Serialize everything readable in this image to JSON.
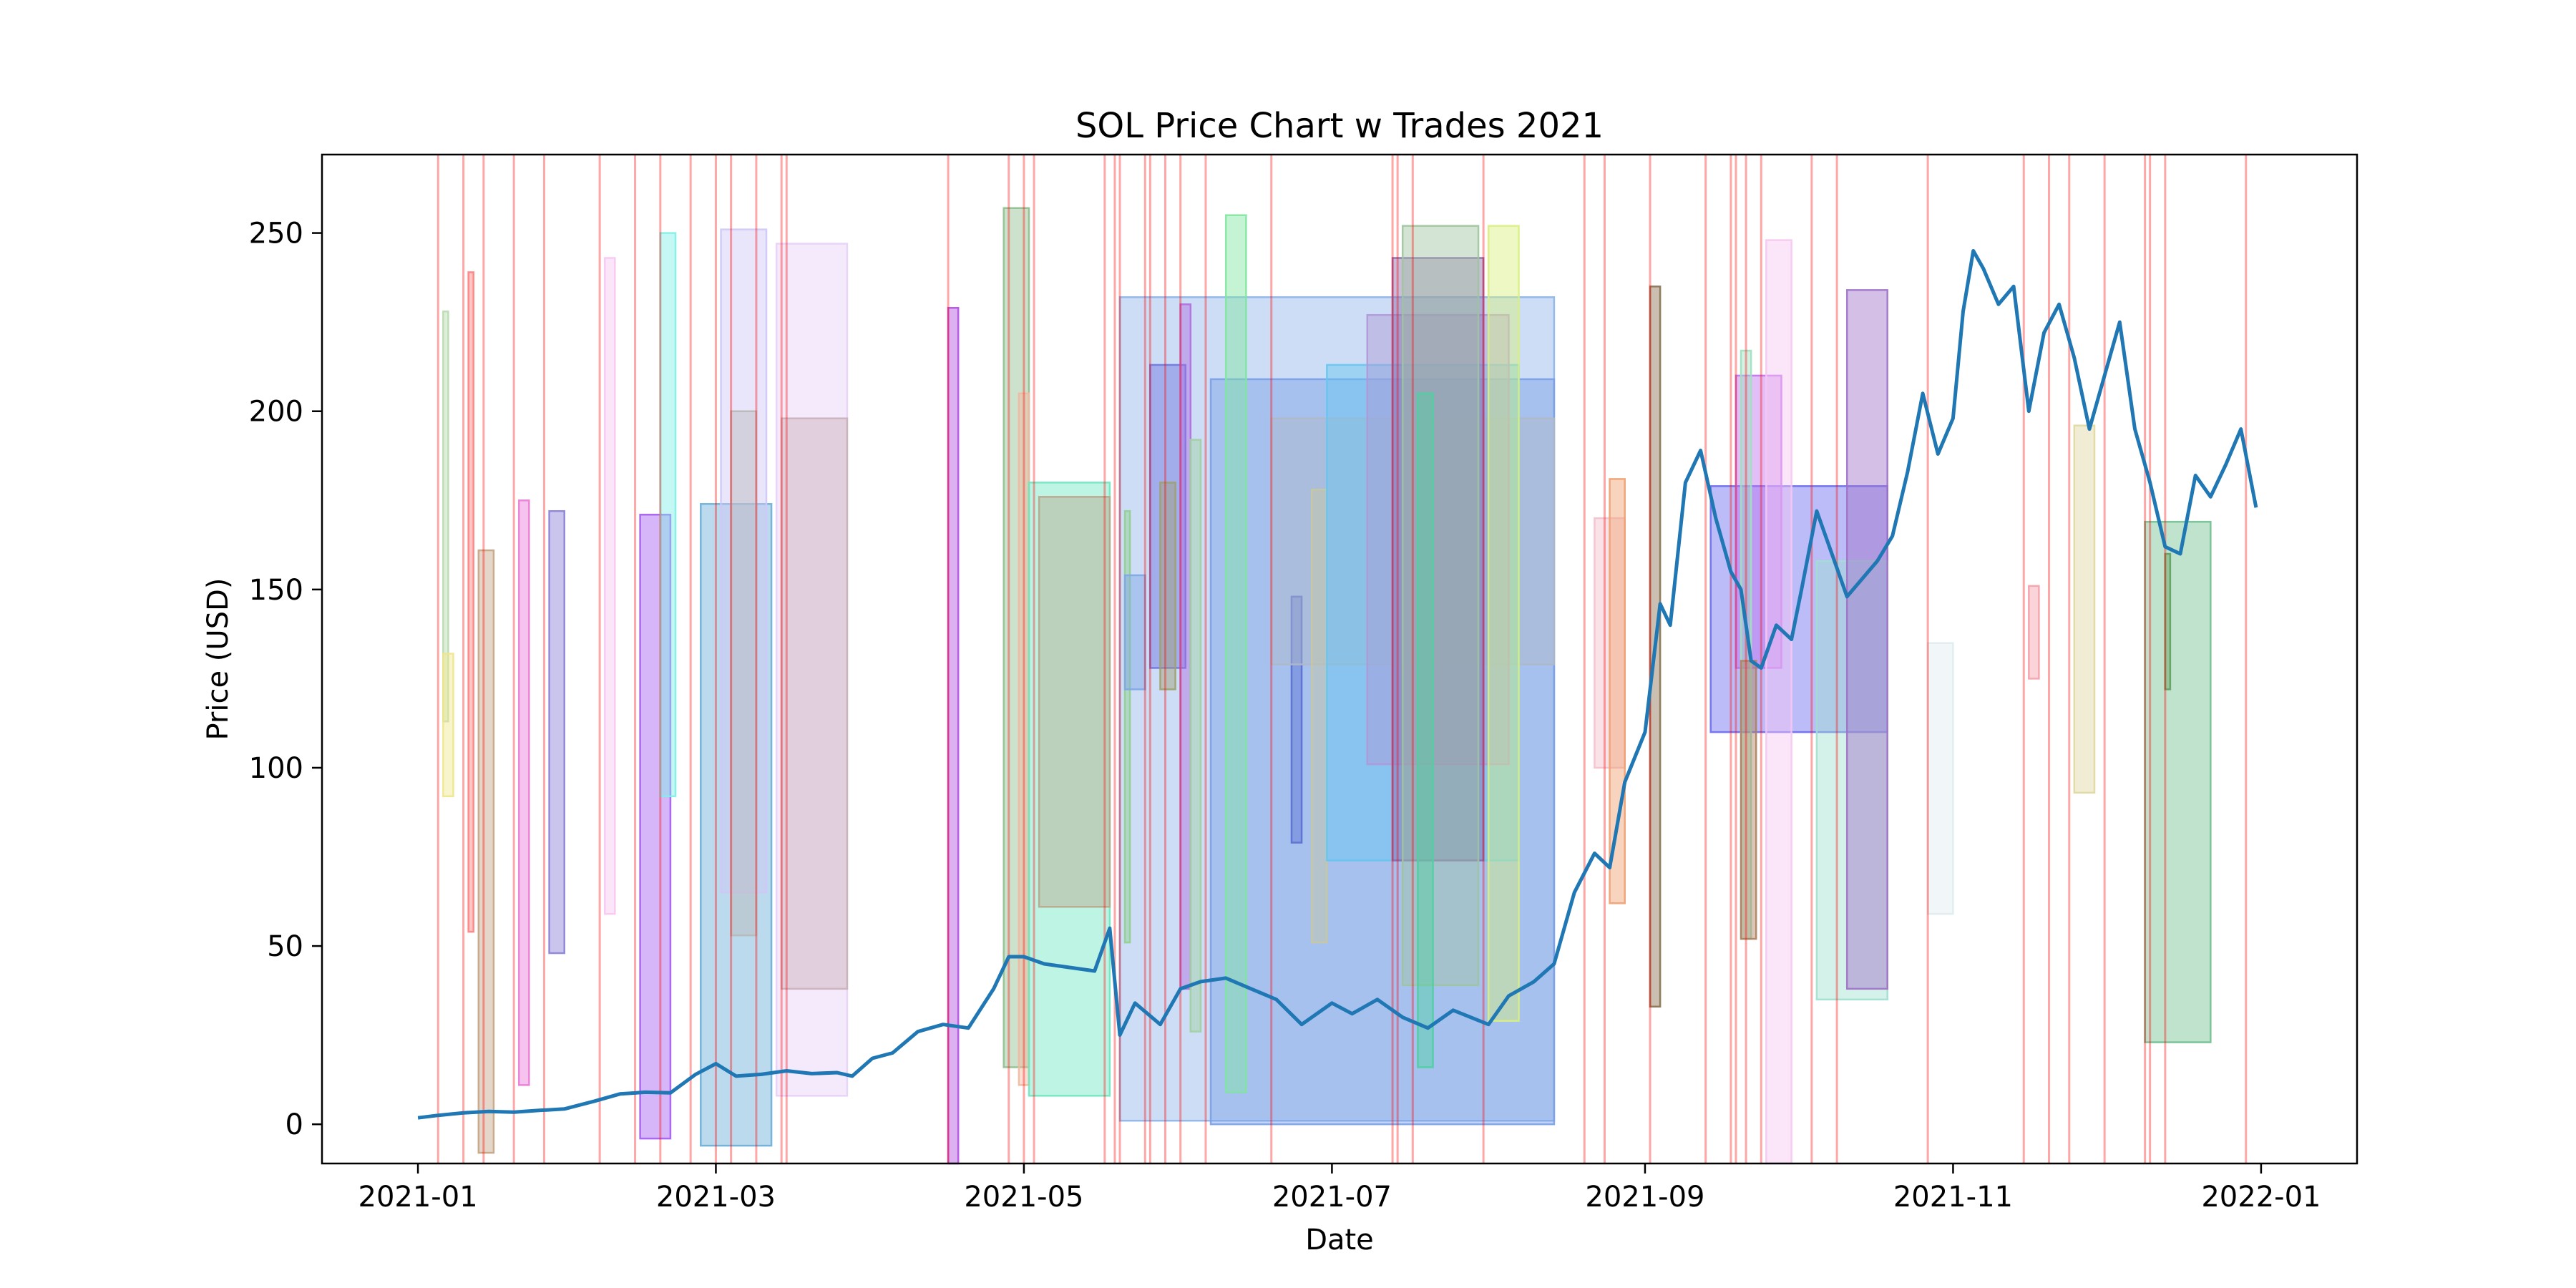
{
  "chart_data": {
    "type": "line",
    "title": "SOL Price Chart w Trades 2021",
    "xlabel": "Date",
    "ylabel": "Price (USD)",
    "xlim": [
      "2020-12-13",
      "2022-01-20"
    ],
    "ylim": [
      -11,
      272
    ],
    "x_ticks": [
      "2021-01",
      "2021-03",
      "2021-05",
      "2021-07",
      "2021-09",
      "2021-11",
      "2022-01"
    ],
    "y_ticks": [
      0,
      50,
      100,
      150,
      200,
      250
    ],
    "grid": false,
    "line_color": "#1f77b4",
    "series": [
      {
        "x": [
          "2021-01-01",
          "2021-01-05",
          "2021-01-10",
          "2021-01-15",
          "2021-01-20",
          "2021-01-25",
          "2021-01-30",
          "2021-02-05",
          "2021-02-10",
          "2021-02-15",
          "2021-02-20",
          "2021-02-25",
          "2021-03-01",
          "2021-03-05",
          "2021-03-10",
          "2021-03-15",
          "2021-03-20",
          "2021-03-25",
          "2021-03-28",
          "2021-04-01",
          "2021-04-05",
          "2021-04-10",
          "2021-04-15",
          "2021-04-20",
          "2021-04-25",
          "2021-04-28",
          "2021-05-01",
          "2021-05-05",
          "2021-05-10",
          "2021-05-15",
          "2021-05-18",
          "2021-05-20",
          "2021-05-23",
          "2021-05-28",
          "2021-06-01",
          "2021-06-05",
          "2021-06-10",
          "2021-06-15",
          "2021-06-20",
          "2021-06-25",
          "2021-07-01",
          "2021-07-05",
          "2021-07-10",
          "2021-07-15",
          "2021-07-20",
          "2021-07-25",
          "2021-08-01",
          "2021-08-05",
          "2021-08-10",
          "2021-08-14",
          "2021-08-18",
          "2021-08-22",
          "2021-08-25",
          "2021-08-28",
          "2021-09-01",
          "2021-09-04",
          "2021-09-06",
          "2021-09-09",
          "2021-09-12",
          "2021-09-15",
          "2021-09-18",
          "2021-09-20",
          "2021-09-22",
          "2021-09-24",
          "2021-09-27",
          "2021-09-30",
          "2021-10-02",
          "2021-10-05",
          "2021-10-08",
          "2021-10-11",
          "2021-10-14",
          "2021-10-17",
          "2021-10-20",
          "2021-10-23",
          "2021-10-26",
          "2021-10-29",
          "2021-11-01",
          "2021-11-03",
          "2021-11-05",
          "2021-11-07",
          "2021-11-10",
          "2021-11-13",
          "2021-11-16",
          "2021-11-19",
          "2021-11-22",
          "2021-11-25",
          "2021-11-28",
          "2021-12-01",
          "2021-12-04",
          "2021-12-07",
          "2021-12-10",
          "2021-12-13",
          "2021-12-16",
          "2021-12-19",
          "2021-12-22",
          "2021-12-25",
          "2021-12-28",
          "2021-12-31"
        ],
        "y": [
          1.8,
          2.5,
          3.2,
          3.6,
          3.4,
          3.9,
          4.3,
          6.5,
          8.5,
          9.0,
          8.8,
          14,
          17,
          13.5,
          14,
          15,
          14.2,
          14.5,
          13.5,
          18.5,
          20,
          26,
          28,
          27,
          38,
          47,
          47,
          45,
          44,
          43,
          55,
          25,
          34,
          28,
          38,
          40,
          41,
          38,
          35,
          28,
          34,
          31,
          35,
          30,
          27,
          32,
          28,
          36,
          40,
          45,
          65,
          76,
          72,
          96,
          110,
          146,
          140,
          180,
          189,
          170,
          155,
          150,
          130,
          128,
          140,
          136,
          150,
          172,
          160,
          148,
          153,
          158,
          165,
          183,
          205,
          188,
          198,
          228,
          245,
          240,
          230,
          235,
          200,
          222,
          230,
          215,
          195,
          210,
          225,
          195,
          180,
          162,
          160,
          182,
          176,
          185,
          195,
          173
        ]
      }
    ],
    "trades": [
      {
        "x0": "2021-01-06",
        "x1": "2021-01-07",
        "y0": 113,
        "y1": 228,
        "color": "#b8dbb0"
      },
      {
        "x0": "2021-01-06",
        "x1": "2021-01-08",
        "y0": 92,
        "y1": 132,
        "color": "#f0e68c"
      },
      {
        "x0": "2021-01-11",
        "x1": "2021-01-12",
        "y0": 54,
        "y1": 239,
        "color": "#ff7f7f"
      },
      {
        "x0": "2021-01-13",
        "x1": "2021-01-16",
        "y0": -8,
        "y1": 161,
        "color": "#c4a484"
      },
      {
        "x0": "2021-01-21",
        "x1": "2021-01-23",
        "y0": 11,
        "y1": 175,
        "color": "#e87ad6"
      },
      {
        "x0": "2021-01-27",
        "x1": "2021-01-30",
        "y0": 48,
        "y1": 172,
        "color": "#8a7fd6"
      },
      {
        "x0": "2021-02-07",
        "x1": "2021-02-09",
        "y0": 59,
        "y1": 243,
        "color": "#f7c6f2"
      },
      {
        "x0": "2021-02-14",
        "x1": "2021-02-20",
        "y0": -4,
        "y1": 171,
        "color": "#a45cf0"
      },
      {
        "x0": "2021-02-18",
        "x1": "2021-02-21",
        "y0": 92,
        "y1": 250,
        "color": "#7ff0e6"
      },
      {
        "x0": "2021-02-26",
        "x1": "2021-03-12",
        "y0": -6,
        "y1": 174,
        "color": "#6aaed6"
      },
      {
        "x0": "2021-03-02",
        "x1": "2021-03-11",
        "y0": 65,
        "y1": 251,
        "color": "#cfc6f7"
      },
      {
        "x0": "2021-03-04",
        "x1": "2021-03-09",
        "y0": 53,
        "y1": 200,
        "color": "#b8b8b8"
      },
      {
        "x0": "2021-03-13",
        "x1": "2021-03-27",
        "y0": 8,
        "y1": 247,
        "color": "#e6d0f7"
      },
      {
        "x0": "2021-03-14",
        "x1": "2021-03-27",
        "y0": 38,
        "y1": 198,
        "color": "#c9b0b8"
      },
      {
        "x0": "2021-04-16",
        "x1": "2021-04-18",
        "y0": -11,
        "y1": 229,
        "color": "#b44fe0"
      },
      {
        "x0": "2021-04-27",
        "x1": "2021-05-02",
        "y0": 16,
        "y1": 257,
        "color": "#8fbf8f"
      },
      {
        "x0": "2021-04-30",
        "x1": "2021-05-02",
        "y0": 11,
        "y1": 205,
        "color": "#f2b8a0"
      },
      {
        "x0": "2021-05-02",
        "x1": "2021-05-18",
        "y0": 8,
        "y1": 180,
        "color": "#6ee6c0"
      },
      {
        "x0": "2021-05-04",
        "x1": "2021-05-18",
        "y0": 61,
        "y1": 176,
        "color": "#b8a68c"
      },
      {
        "x0": "2021-05-20",
        "x1": "2021-08-14",
        "y0": 1,
        "y1": 232,
        "color": "#8db4e8"
      },
      {
        "x0": "2021-05-21",
        "x1": "2021-05-22",
        "y0": 51,
        "y1": 172,
        "color": "#90d090"
      },
      {
        "x0": "2021-05-21",
        "x1": "2021-05-25",
        "y0": 122,
        "y1": 154,
        "color": "#7fa7e6"
      },
      {
        "x0": "2021-05-26",
        "x1": "2021-06-02",
        "y0": 128,
        "y1": 213,
        "color": "#6f75e0"
      },
      {
        "x0": "2021-05-28",
        "x1": "2021-05-31",
        "y0": 122,
        "y1": 180,
        "color": "#a0a070"
      },
      {
        "x0": "2021-06-01",
        "x1": "2021-06-03",
        "y0": 38,
        "y1": 230,
        "color": "#b06ee0"
      },
      {
        "x0": "2021-06-03",
        "x1": "2021-06-05",
        "y0": 26,
        "y1": 192,
        "color": "#a0d0a0"
      },
      {
        "x0": "2021-06-07",
        "x1": "2021-08-14",
        "y0": 0,
        "y1": 209,
        "color": "#7aa0e8"
      },
      {
        "x0": "2021-06-10",
        "x1": "2021-06-14",
        "y0": 9,
        "y1": 255,
        "color": "#7fe6a0"
      },
      {
        "x0": "2021-06-23",
        "x1": "2021-06-25",
        "y0": 79,
        "y1": 148,
        "color": "#5a6fd0"
      },
      {
        "x0": "2021-06-19",
        "x1": "2021-08-14",
        "y0": 129,
        "y1": 198,
        "color": "#b0b8c8"
      },
      {
        "x0": "2021-06-27",
        "x1": "2021-06-30",
        "y0": 51,
        "y1": 178,
        "color": "#c8c8a0"
      },
      {
        "x0": "2021-06-30",
        "x1": "2021-08-07",
        "y0": 74,
        "y1": 213,
        "color": "#66c6f0"
      },
      {
        "x0": "2021-07-08",
        "x1": "2021-08-05",
        "y0": 101,
        "y1": 227,
        "color": "#b098d8"
      },
      {
        "x0": "2021-07-13",
        "x1": "2021-07-31",
        "y0": 74,
        "y1": 243,
        "color": "#8a6ab0"
      },
      {
        "x0": "2021-07-15",
        "x1": "2021-07-30",
        "y0": 39,
        "y1": 252,
        "color": "#9fc49f"
      },
      {
        "x0": "2021-07-18",
        "x1": "2021-07-21",
        "y0": 16,
        "y1": 205,
        "color": "#4fd0a0"
      },
      {
        "x0": "2021-08-01",
        "x1": "2021-08-07",
        "y0": 29,
        "y1": 252,
        "color": "#d8f07f"
      },
      {
        "x0": "2021-08-22",
        "x1": "2021-08-28",
        "y0": 100,
        "y1": 170,
        "color": "#f5c0cc"
      },
      {
        "x0": "2021-08-25",
        "x1": "2021-08-28",
        "y0": 62,
        "y1": 181,
        "color": "#f0a070"
      },
      {
        "x0": "2021-09-02",
        "x1": "2021-09-04",
        "y0": 33,
        "y1": 235,
        "color": "#8a7050"
      },
      {
        "x0": "2021-09-14",
        "x1": "2021-10-19",
        "y0": 110,
        "y1": 179,
        "color": "#6a6af0"
      },
      {
        "x0": "2021-09-19",
        "x1": "2021-09-28",
        "y0": 128,
        "y1": 210,
        "color": "#c070f0"
      },
      {
        "x0": "2021-09-20",
        "x1": "2021-09-22",
        "y0": 52,
        "y1": 217,
        "color": "#a0e0c0"
      },
      {
        "x0": "2021-09-20",
        "x1": "2021-09-23",
        "y0": 52,
        "y1": 130,
        "color": "#b08060"
      },
      {
        "x0": "2021-09-25",
        "x1": "2021-09-30",
        "y0": -11,
        "y1": 248,
        "color": "#f7c6f2"
      },
      {
        "x0": "2021-10-05",
        "x1": "2021-10-19",
        "y0": 35,
        "y1": 158,
        "color": "#a0e0d0"
      },
      {
        "x0": "2021-10-11",
        "x1": "2021-10-19",
        "y0": 38,
        "y1": 234,
        "color": "#a070c8"
      },
      {
        "x0": "2021-10-27",
        "x1": "2021-11-01",
        "y0": 59,
        "y1": 135,
        "color": "#e0ecf0"
      },
      {
        "x0": "2021-11-16",
        "x1": "2021-11-18",
        "y0": 125,
        "y1": 151,
        "color": "#f5a0a8"
      },
      {
        "x0": "2021-11-25",
        "x1": "2021-11-29",
        "y0": 93,
        "y1": 196,
        "color": "#e0d8a0"
      },
      {
        "x0": "2021-12-09",
        "x1": "2021-12-22",
        "y0": 23,
        "y1": 169,
        "color": "#70c090"
      },
      {
        "x0": "2021-12-13",
        "x1": "2021-12-14",
        "y0": 122,
        "y1": 160,
        "color": "#60a060"
      }
    ],
    "trade_lines": [
      "2021-01-05",
      "2021-01-10",
      "2021-01-14",
      "2021-01-20",
      "2021-01-26",
      "2021-02-06",
      "2021-02-13",
      "2021-02-18",
      "2021-02-24",
      "2021-03-01",
      "2021-03-04",
      "2021-03-09",
      "2021-03-14",
      "2021-03-15",
      "2021-04-16",
      "2021-04-28",
      "2021-05-01",
      "2021-05-03",
      "2021-05-17",
      "2021-05-19",
      "2021-05-20",
      "2021-05-25",
      "2021-05-26",
      "2021-05-29",
      "2021-06-01",
      "2021-06-06",
      "2021-06-19",
      "2021-07-13",
      "2021-07-14",
      "2021-07-17",
      "2021-07-31",
      "2021-08-20",
      "2021-08-24",
      "2021-09-02",
      "2021-09-13",
      "2021-09-18",
      "2021-09-19",
      "2021-09-21",
      "2021-09-24",
      "2021-10-04",
      "2021-10-09",
      "2021-10-27",
      "2021-11-15",
      "2021-11-20",
      "2021-11-24",
      "2021-12-01",
      "2021-12-09",
      "2021-12-10",
      "2021-12-13",
      "2021-12-29"
    ],
    "trade_line_color": "#ff0000"
  }
}
